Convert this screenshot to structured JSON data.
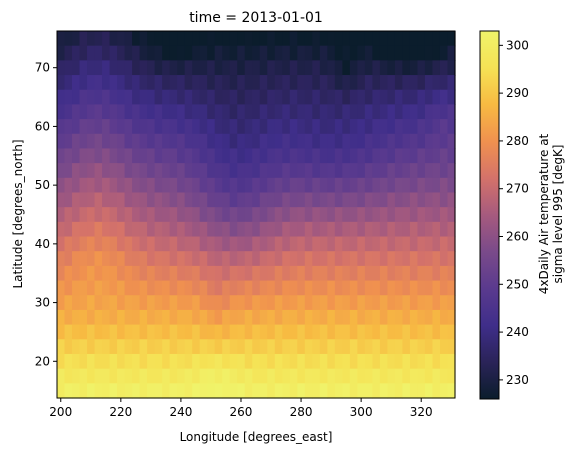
{
  "chart_data": {
    "type": "heatmap",
    "title": "time = 2013-01-01",
    "xlabel": "Longitude [degrees_east]",
    "ylabel": "Latitude [degrees_north]",
    "colorbar_label_lines": [
      "4xDaily Air temperature at",
      "sigma level 995 [degK]"
    ],
    "xlim": [
      198.75,
      331.25
    ],
    "ylim": [
      13.75,
      76.25
    ],
    "x_ticks": [
      200,
      220,
      240,
      260,
      280,
      300,
      320
    ],
    "y_ticks": [
      20,
      30,
      40,
      50,
      60,
      70
    ],
    "colorbar_ticks": [
      230,
      240,
      250,
      260,
      270,
      280,
      290,
      300
    ],
    "vmin": 226,
    "vmax": 303,
    "colormap": [
      "#0b1d2c",
      "#2a2358",
      "#3f2e8a",
      "#5a3a8e",
      "#7a4a8a",
      "#a65a7e",
      "#d4726a",
      "#f0914f",
      "#f7ba42",
      "#f5e255",
      "#f0f36a"
    ],
    "grid": false,
    "legend": "colorbar-right",
    "x_resolution_deg": 2.5,
    "y_resolution_deg": 2.5,
    "lon_range": [
      200,
      330
    ],
    "lat_range": [
      75,
      15
    ],
    "description_of_values": "Air temperature in degK; cold (~230-245) in north near 70-75N, warm (~295-302) in south near 15-25N"
  }
}
